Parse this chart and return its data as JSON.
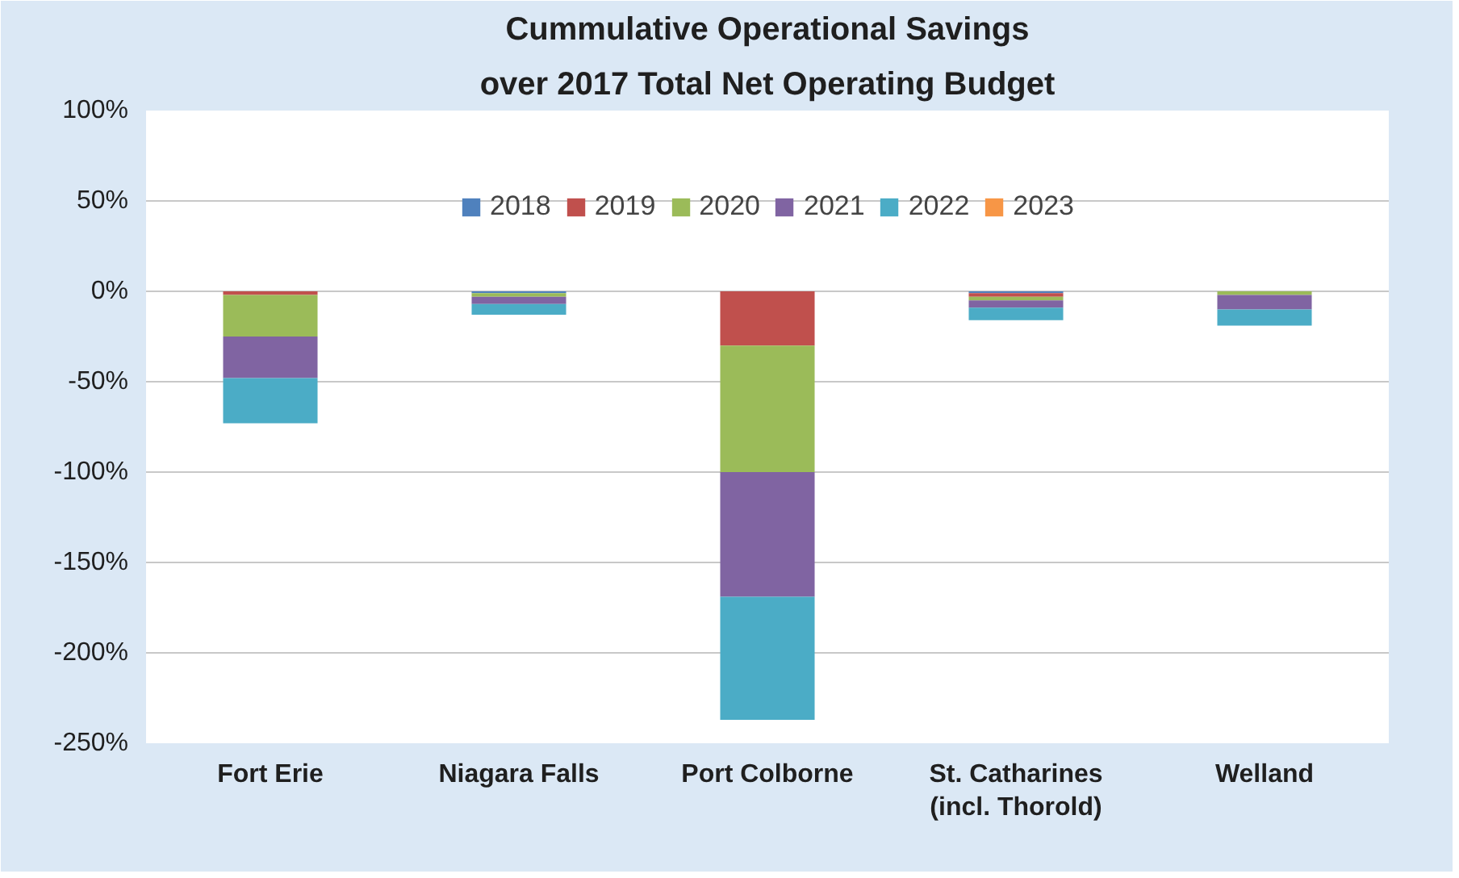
{
  "chart_data": {
    "type": "bar",
    "stacked": true,
    "title": "Cummulative Operational Savings",
    "subtitle": "over 2017 Total Net Operating Budget",
    "categories": [
      "Fort Erie",
      "Niagara Falls",
      "Port Colborne",
      "St. Catharines\n(incl. Thorold)",
      "Welland"
    ],
    "series": [
      {
        "name": "2018",
        "color": "#4f81bd",
        "values": [
          null,
          -1,
          null,
          -1,
          null
        ]
      },
      {
        "name": "2019",
        "color": "#c0504d",
        "values": [
          -2,
          null,
          -30,
          -2,
          null
        ]
      },
      {
        "name": "2020",
        "color": "#9bbb59",
        "values": [
          -23,
          -2,
          -70,
          -2,
          -2
        ]
      },
      {
        "name": "2021",
        "color": "#8064a2",
        "values": [
          -23,
          -4,
          -69,
          -4,
          -8
        ]
      },
      {
        "name": "2022",
        "color": "#4bacc6",
        "values": [
          -25,
          -6,
          -68,
          -7,
          -9
        ]
      },
      {
        "name": "2023",
        "color": "#f79646",
        "values": [
          0,
          0,
          0,
          0,
          0
        ]
      }
    ],
    "ylim": [
      -250,
      100
    ],
    "yticks": [
      {
        "value": 100,
        "label": "100%"
      },
      {
        "value": 50,
        "label": "50%"
      },
      {
        "value": 0,
        "label": "0%"
      },
      {
        "value": -50,
        "label": "-50%"
      },
      {
        "value": -100,
        "label": "-100%"
      },
      {
        "value": -150,
        "label": "-150%"
      },
      {
        "value": -200,
        "label": "-200%"
      },
      {
        "value": -250,
        "label": "-250%"
      }
    ],
    "grid": "y",
    "legend": "top"
  }
}
